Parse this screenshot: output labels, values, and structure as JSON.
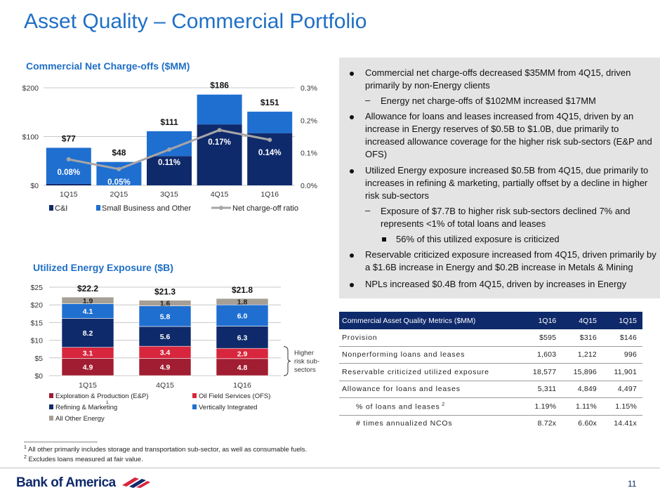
{
  "slide": {
    "title": "Asset Quality – Commercial Portfolio",
    "page_number": "11",
    "logo_text": "Bank of America"
  },
  "chart_data": [
    {
      "type": "bar",
      "title": "Commercial Net Charge-offs ($MM)",
      "categories": [
        "1Q15",
        "2Q15",
        "3Q15",
        "4Q15",
        "1Q16"
      ],
      "series": [
        {
          "name": "C&I",
          "values": [
            3,
            0,
            60,
            125,
            107
          ],
          "color": "#0f2a6b"
        },
        {
          "name": "Small Business and Other",
          "values": [
            74,
            48,
            51,
            61,
            44
          ],
          "color": "#1f6fd1"
        },
        {
          "name": "Net charge-off ratio",
          "values": [
            0.08,
            0.05,
            0.11,
            0.17,
            0.14
          ],
          "color": "#a6a6a6",
          "axis": "right",
          "kind": "line"
        }
      ],
      "totals": [
        "$77",
        "$48",
        "$111",
        "$186",
        "$151"
      ],
      "ratio_labels": [
        "0.08%",
        "0.05%",
        "0.11%",
        "0.17%",
        "0.14%"
      ],
      "ylim": [
        0,
        200
      ],
      "yticks": [
        "$0",
        "$100",
        "$200"
      ],
      "y2lim": [
        0,
        0.3
      ],
      "y2ticks": [
        "0.0%",
        "0.1%",
        "0.2%",
        "0.3%"
      ],
      "legend": "bottom",
      "grid": true
    },
    {
      "type": "bar",
      "title": "Utilized Energy Exposure ($B)",
      "categories": [
        "1Q15",
        "4Q15",
        "1Q16"
      ],
      "series": [
        {
          "name": "Exploration & Production (E&P)",
          "values": [
            4.9,
            4.9,
            4.8
          ],
          "color": "#a11d31"
        },
        {
          "name": "Oil Field Services (OFS)",
          "values": [
            3.1,
            3.4,
            2.9
          ],
          "color": "#d7263d"
        },
        {
          "name": "Refining & Marketing",
          "values": [
            8.2,
            5.6,
            6.3
          ],
          "color": "#0f2a6b"
        },
        {
          "name": "Vertically Integrated",
          "values": [
            4.1,
            5.8,
            6.0
          ],
          "color": "#1f6fd1"
        },
        {
          "name": "All Other Energy",
          "values": [
            1.9,
            1.6,
            1.8
          ],
          "color": "#a69f95"
        }
      ],
      "totals": [
        "$22.2",
        "$21.3",
        "$21.8"
      ],
      "ylim": [
        0,
        25
      ],
      "yticks": [
        "$0",
        "$5",
        "$10",
        "$15",
        "$20",
        "$25"
      ],
      "legend": "bottom",
      "grid": true,
      "annotation": [
        "Higher",
        "risk sub-",
        "sectors"
      ],
      "legend_footnote_mark": "1"
    }
  ],
  "bullets": [
    {
      "level": 1,
      "text": "Commercial net charge-offs decreased $35MM from 4Q15, driven primarily by non-Energy clients"
    },
    {
      "level": 2,
      "text": "Energy net charge-offs of $102MM increased $17MM"
    },
    {
      "level": 1,
      "text": "Allowance for loans and leases increased from 4Q15, driven by an increase in Energy reserves of $0.5B to $1.0B, due primarily to increased allowance coverage for the higher risk sub-sectors (E&P and OFS)"
    },
    {
      "level": 1,
      "text": "Utilized Energy exposure increased $0.5B from 4Q15, due primarily to increases in refining & marketing, partially offset by a decline in higher risk sub-sectors"
    },
    {
      "level": 2,
      "text": "Exposure of $7.7B to higher risk sub-sectors declined 7% and represents <1% of total loans and leases"
    },
    {
      "level": 3,
      "text": "56% of this utilized exposure is criticized"
    },
    {
      "level": 1,
      "text": "Reservable criticized exposure increased from 4Q15, driven primarily by a $1.6B increase in Energy and $0.2B increase in Metals & Mining"
    },
    {
      "level": 1,
      "text": "NPLs increased $0.4B from 4Q15, driven by increases in Energy"
    }
  ],
  "metrics_table": {
    "headers": [
      "Commercial Asset Quality Metrics ($MM)",
      "1Q16",
      "4Q15",
      "1Q15"
    ],
    "rows": [
      {
        "label": "Provision",
        "values": [
          "$595",
          "$316",
          "$146"
        ]
      },
      {
        "label": "Nonperforming loans and leases",
        "values": [
          "1,603",
          "1,212",
          "996"
        ]
      },
      {
        "label": "Reservable criticized utilized exposure",
        "values": [
          "18,577",
          "15,896",
          "11,901"
        ]
      },
      {
        "label": "Allowance for loans and leases",
        "values": [
          "5,311",
          "4,849",
          "4,497"
        ]
      },
      {
        "label": "% of loans and leases",
        "sup": "2",
        "values": [
          "1.19%",
          "1.11%",
          "1.15%"
        ],
        "indent": true
      },
      {
        "label": "# times annualized NCOs",
        "values": [
          "8.72x",
          "6.60x",
          "14.41x"
        ],
        "indent": true
      }
    ]
  },
  "footnotes": [
    {
      "mark": "1",
      "text": "All other primarily includes storage and transportation sub-sector, as well as consumable fuels."
    },
    {
      "mark": "2",
      "text": "Excludes loans measured at fair value."
    }
  ],
  "colors": {
    "title_blue": "#1f6fc5",
    "navy": "#0f2a6b",
    "red": "#d7263d",
    "panel_grey": "#e4e4e4"
  }
}
